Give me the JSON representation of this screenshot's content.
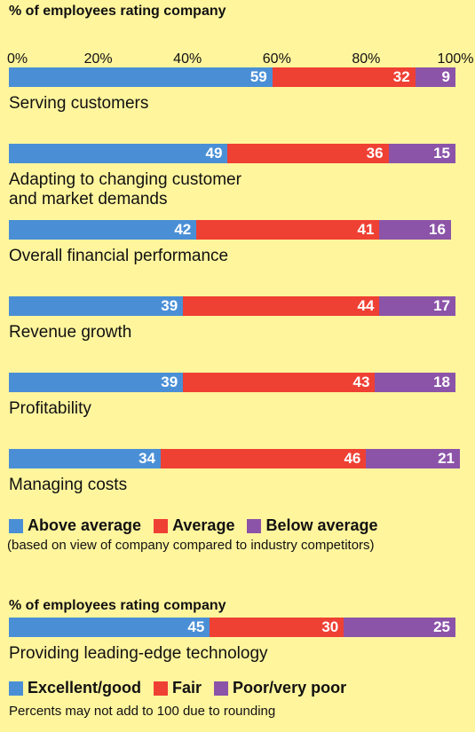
{
  "chart_data": [
    {
      "type": "bar",
      "orientation": "horizontal",
      "stacked": true,
      "title": "% of employees rating company",
      "categories": [
        "Serving customers",
        "Adapting to changing customer and market demands",
        "Overall financial performance",
        "Revenue growth",
        "Profitability",
        "Managing costs"
      ],
      "series": [
        {
          "name": "Above average",
          "color": "#4a8fd6",
          "values": [
            59,
            49,
            42,
            39,
            39,
            34
          ]
        },
        {
          "name": "Average",
          "color": "#ef4034",
          "values": [
            32,
            36,
            41,
            44,
            43,
            46
          ]
        },
        {
          "name": "Below average",
          "color": "#8c54a8",
          "values": [
            9,
            15,
            16,
            17,
            18,
            21
          ]
        }
      ],
      "xlim": [
        0,
        100
      ],
      "xticks": [
        {
          "value": 0,
          "label": "0%"
        },
        {
          "value": 20,
          "label": "20%"
        },
        {
          "value": 40,
          "label": "40%"
        },
        {
          "value": 60,
          "label": "60%"
        },
        {
          "value": 80,
          "label": "80%"
        },
        {
          "value": 100,
          "label": "100%"
        }
      ],
      "subtitle": "(based on view of company compared to industry competitors)"
    },
    {
      "type": "bar",
      "orientation": "horizontal",
      "stacked": true,
      "title": "% of employees rating company",
      "categories": [
        "Providing leading-edge technology"
      ],
      "series": [
        {
          "name": "Excellent/good",
          "color": "#4a8fd6",
          "values": [
            45
          ]
        },
        {
          "name": "Fair",
          "color": "#ef4034",
          "values": [
            30
          ]
        },
        {
          "name": "Poor/very poor",
          "color": "#8c54a8",
          "values": [
            25
          ]
        }
      ],
      "xlim": [
        0,
        100
      ],
      "note": "Percents may not add to 100 due to rounding"
    }
  ]
}
